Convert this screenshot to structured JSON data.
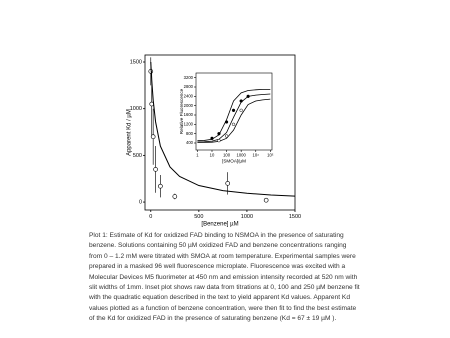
{
  "chart_data": [
    {
      "type": "scatter",
      "xlabel": "[Benzene] µM",
      "ylabel": "Apparent Kd / µM",
      "xlim": [
        -60,
        1500
      ],
      "ylim": [
        -85,
        1575
      ],
      "xticks": [
        0,
        500,
        1000,
        1500
      ],
      "yticks": [
        0,
        500,
        1000,
        1500
      ],
      "series": [
        {
          "mode": "markers",
          "marker": "open",
          "color": "#000000",
          "x": [
            0,
            10,
            25,
            50,
            100,
            250,
            800,
            1200
          ],
          "values": [
            1400,
            1050,
            700,
            350,
            170,
            60,
            200,
            20
          ],
          "errors": [
            150,
            350,
            300,
            250,
            120,
            30,
            120,
            20
          ]
        },
        {
          "mode": "line",
          "color": "#000000",
          "x": [
            0,
            10,
            25,
            50,
            100,
            200,
            300,
            500,
            750,
            1000,
            1250,
            1500
          ],
          "values": [
            1500,
            1305,
            1092,
            859,
            599,
            376,
            274,
            177,
            123,
            94,
            76,
            64
          ]
        }
      ]
    },
    {
      "type": "scatter",
      "xlabel": "[SMOA]/µM",
      "ylabel": "Relative Fluorescence",
      "xlog": true,
      "xlim": [
        0.8,
        130000
      ],
      "ylim": [
        100,
        3400
      ],
      "xticks": [
        1,
        10,
        100,
        1000,
        {
          "value": 10000,
          "label": "10⁴"
        },
        {
          "value": 100000,
          "label": "10⁵"
        }
      ],
      "yticks": [
        400,
        800,
        1200,
        1600,
        2000,
        2400,
        2800,
        3200
      ],
      "series": [
        {
          "mode": "line",
          "color": "#000000",
          "x": [
            1,
            3,
            10,
            30,
            100,
            300,
            1000,
            3000,
            10000,
            30000,
            100000
          ],
          "values": [
            500,
            510,
            560,
            750,
            1400,
            2200,
            2550,
            2650,
            2680,
            2700,
            2700
          ]
        },
        {
          "mode": "line",
          "color": "#000000",
          "x": [
            1,
            3,
            10,
            30,
            100,
            300,
            1000,
            3000,
            10000,
            30000,
            100000
          ],
          "values": [
            450,
            455,
            480,
            560,
            850,
            1500,
            2150,
            2400,
            2450,
            2480,
            2500
          ]
        },
        {
          "mode": "line",
          "color": "#000000",
          "x": [
            1,
            3,
            10,
            30,
            100,
            300,
            1000,
            3000,
            10000,
            30000,
            100000
          ],
          "values": [
            420,
            425,
            435,
            470,
            600,
            950,
            1600,
            2050,
            2200,
            2250,
            2280
          ]
        },
        {
          "mode": "markers",
          "marker": "filled",
          "color": "#000000",
          "x": [
            10,
            30,
            100,
            300,
            1000,
            3000
          ],
          "values": [
            600,
            800,
            1300,
            1800,
            2200,
            2400
          ]
        },
        {
          "mode": "markers",
          "marker": "open",
          "color": "#000000",
          "x": [
            30,
            100,
            300,
            1000
          ],
          "values": [
            500,
            700,
            1200,
            1800
          ]
        }
      ]
    }
  ],
  "caption": "Plot 1: Estimate of Kd for oxidized FAD binding to NSMOA in the presence of saturating benzene. Solutions containing 50 µM oxidized FAD and benzene concentrations ranging from 0 – 1.2 mM were titrated with SMOA at room temperature.  Experimental samples were prepared in a masked 96 well fluorescence microplate. Fluorescence was excited with a Molecular Devices M5 fluorimeter at 450 nm and emission intensity recorded at 520 nm with slit widths of 1mm. Inset plot shows raw data from titrations  at 0, 100 and 250 µM benzene fit with the quadratic equation described in the text to yield apparent Kd values. Apparent Kd values plotted as a function of benzene concentration, were then fit to find the best estimate of the Kd for oxidized FAD in the presence of saturating benzene (Kd = 67 ± 19 µM )."
}
